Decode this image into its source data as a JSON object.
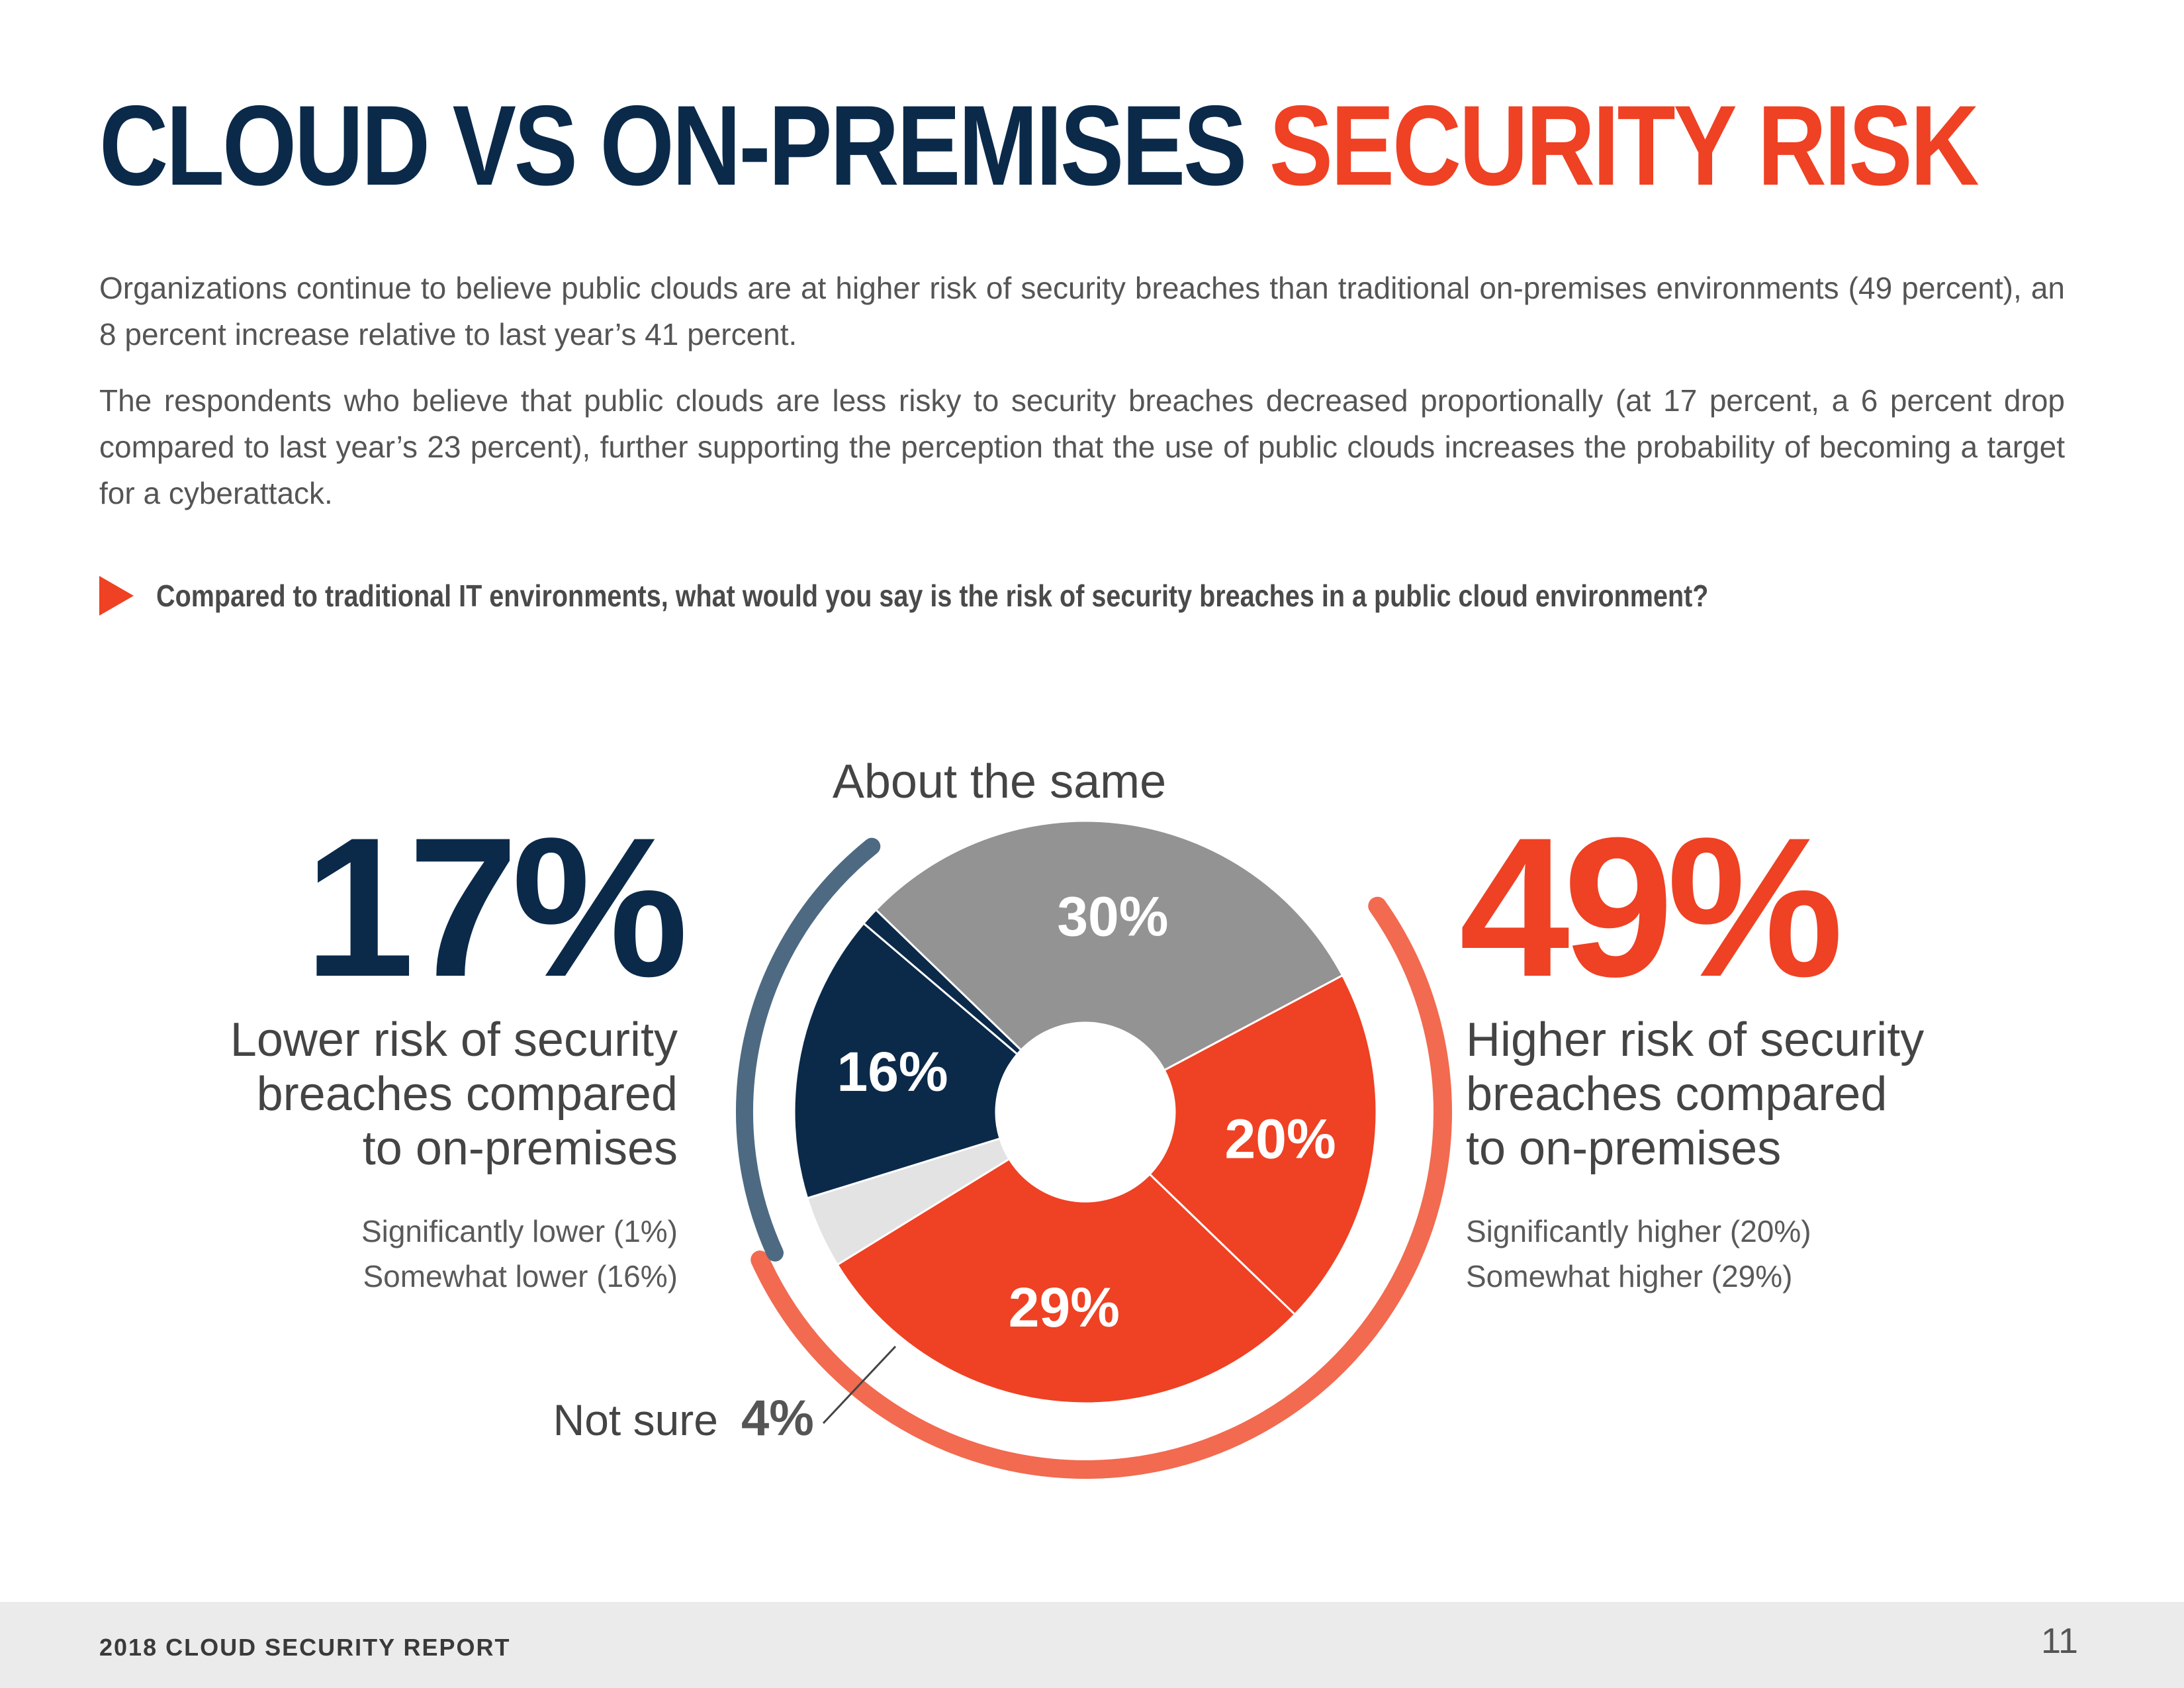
{
  "header": {
    "title_main": "CLOUD VS ON-PREMISES",
    "title_accent": "SECURITY RISK"
  },
  "body": {
    "paragraph_1": "Organizations continue to believe public clouds are at higher risk of security breaches than traditional on-premises environments (49 percent), an 8 percent increase relative to last year’s 41 percent.",
    "paragraph_2": "The respondents who believe that public clouds are less risky to security breaches decreased proportionally (at 17 percent, a 6 percent drop compared to last year’s 23 percent), further supporting the perception that the use of public clouds increases the probability of becoming a target for a cyberattack.",
    "question": "Compared to traditional IT environments, what would you say is the risk of security breaches in a public cloud environment?"
  },
  "summary_left": {
    "value": "17%",
    "lines": [
      "Lower risk of security",
      "breaches compared",
      "to on-premises"
    ],
    "breakdown": [
      "Significantly lower (1%)",
      "Somewhat lower (16%)"
    ]
  },
  "summary_right": {
    "value": "49%",
    "lines": [
      "Higher risk of security",
      "breaches compared",
      "to on-premises"
    ],
    "breakdown": [
      "Significantly higher (20%)",
      "Somewhat higher (29%)"
    ]
  },
  "chart_data": {
    "type": "pie",
    "style": "donut",
    "slices": [
      {
        "name": "Significantly higher",
        "value": 20,
        "label": "20%",
        "color": "#ef4123",
        "label_color": "#ffffff"
      },
      {
        "name": "Somewhat higher",
        "value": 29,
        "label": "29%",
        "color": "#ef4123",
        "label_color": "#ffffff"
      },
      {
        "name": "Not sure",
        "value": 4,
        "label": "",
        "color": "#e3e3e3",
        "label_color": "#ffffff"
      },
      {
        "name": "Somewhat lower",
        "value": 16,
        "label": "16%",
        "color": "#0b2a4a",
        "label_color": "#ffffff"
      },
      {
        "name": "Significantly lower",
        "value": 1,
        "label": "",
        "color": "#0b2a4a",
        "label_color": "#ffffff"
      },
      {
        "name": "About the same",
        "value": 30,
        "label": "30%",
        "color": "#939393",
        "label_color": "#ffffff"
      }
    ],
    "annotations": {
      "about_same": "About the same",
      "not_sure_text": "Not sure",
      "not_sure_value": "4%"
    },
    "group_arcs": [
      {
        "name": "higher",
        "value": 49,
        "color": "#f26a50"
      },
      {
        "name": "lower",
        "value": 17,
        "color": "#4d6a82"
      }
    ]
  },
  "footer": {
    "report_title": "2018 CLOUD SECURITY REPORT",
    "page_number": "11"
  }
}
